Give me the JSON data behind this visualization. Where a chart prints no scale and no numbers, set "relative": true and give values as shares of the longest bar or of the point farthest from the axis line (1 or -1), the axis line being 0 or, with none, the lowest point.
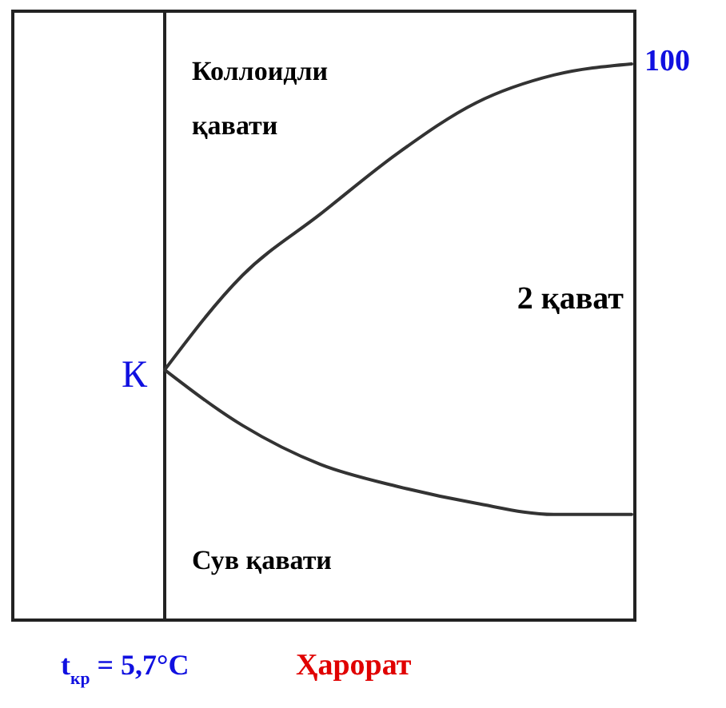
{
  "chart_data": {
    "type": "line",
    "relative": true,
    "xlabel": "Ҳарорат",
    "categories": [
      null,
      null,
      null,
      null,
      null,
      null,
      null
    ],
    "series": [
      {
        "color": "#333333",
        "values": [
          0.45,
          0.62,
          0.73,
          0.84,
          0.93,
          0.98,
          1
        ]
      },
      {
        "color": "#333333",
        "values": [
          0.45,
          0.35,
          0.28,
          0.24,
          0.21,
          0.19,
          0.19
        ]
      }
    ],
    "annotations": [
      "Коллоидли қавати",
      "2 қават",
      "Сув қавати",
      "К",
      "100",
      "t$_{кр}$ = 5,7°C"
    ],
    "grid": false,
    "marker": "none",
    "line_style": "solid"
  }
}
